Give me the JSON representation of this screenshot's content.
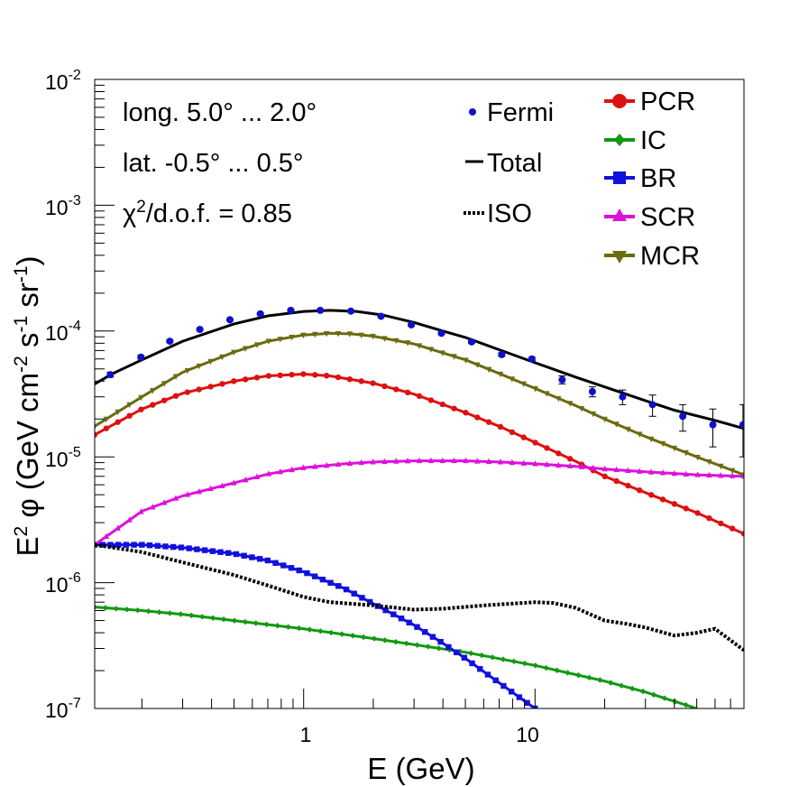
{
  "chart_data": {
    "type": "scatter",
    "xlabel": "E (GeV)",
    "ylabel": "E^2 φ (GeV cm^-2 s^-1 sr^-1)",
    "ylabel_parts": {
      "main": "E",
      "sup1": "2",
      "phi": " φ (GeV cm",
      "sup2": "-2",
      "s": " s",
      "sup3": "-1",
      "sr": " sr",
      "sup4": "-1",
      "close": ")"
    },
    "x_scale": "log",
    "y_scale": "log",
    "xlim": [
      0.125,
      80
    ],
    "ylim": [
      1e-07,
      0.01
    ],
    "x_tick_labels": [
      {
        "value": 1,
        "label": "1"
      },
      {
        "value": 10,
        "label": "10"
      }
    ],
    "y_tick_labels": [
      {
        "value": 1e-07,
        "base": "10",
        "exp": "-7"
      },
      {
        "value": 1e-06,
        "base": "10",
        "exp": "-6"
      },
      {
        "value": 1e-05,
        "base": "10",
        "exp": "-5"
      },
      {
        "value": 0.0001,
        "base": "10",
        "exp": "-4"
      },
      {
        "value": 0.001,
        "base": "10",
        "exp": "-3"
      },
      {
        "value": 0.01,
        "base": "10",
        "exp": "-2"
      }
    ],
    "annotations": {
      "longitude": "long. 5.0° ... 2.0°",
      "latitude": "lat. -0.5° ... 0.5°",
      "chi_prefix": "χ",
      "chi_sup": "2",
      "chi_rest": "/d.o.f. = 0.85"
    },
    "legend_left": [
      {
        "name": "Fermi",
        "kind": "points"
      },
      {
        "name": "Total",
        "kind": "line"
      },
      {
        "name": "ISO",
        "kind": "dotted"
      }
    ],
    "legend_right": [
      {
        "name": "PCR",
        "color": "#dd1111",
        "marker": "circle"
      },
      {
        "name": "IC",
        "color": "#119911",
        "marker": "diamond"
      },
      {
        "name": "BR",
        "color": "#1111dd",
        "marker": "square"
      },
      {
        "name": "SCR",
        "color": "#dd11dd",
        "marker": "triangle-up"
      },
      {
        "name": "MCR",
        "color": "#6b6b10",
        "marker": "triangle-down"
      }
    ],
    "series": [
      {
        "name": "Fermi",
        "color": "#1010cc",
        "x": [
          0.146,
          0.198,
          0.264,
          0.356,
          0.48,
          0.65,
          0.88,
          1.18,
          1.6,
          2.16,
          2.92,
          3.94,
          5.32,
          7.18,
          9.7,
          13.1,
          17.7,
          23.9,
          32.2,
          43.5,
          58.7,
          79.2
        ],
        "y": [
          4.5e-05,
          6.2e-05,
          8.3e-05,
          0.000103,
          0.000123,
          0.000137,
          0.000146,
          0.000146,
          0.000144,
          0.000131,
          0.000112,
          9.6e-05,
          8.2e-05,
          6.5e-05,
          6e-05,
          4.1e-05,
          3.3e-05,
          3e-05,
          2.6e-05,
          2.1e-05,
          1.8e-05,
          1.8e-05
        ],
        "yerr_lo": [
          2e-06,
          2e-06,
          2e-06,
          2e-06,
          2e-06,
          2e-06,
          2e-06,
          2e-06,
          2e-06,
          2e-06,
          2e-06,
          2e-06,
          2e-06,
          2e-06,
          2e-06,
          3e-06,
          3e-06,
          4e-06,
          5e-06,
          5e-06,
          6e-06,
          8e-06
        ],
        "yerr_hi": [
          2e-06,
          2e-06,
          2e-06,
          2e-06,
          2e-06,
          2e-06,
          2e-06,
          2e-06,
          2e-06,
          2e-06,
          2e-06,
          2e-06,
          2e-06,
          2e-06,
          2e-06,
          3e-06,
          3e-06,
          4e-06,
          5e-06,
          5e-06,
          6e-06,
          8e-06
        ]
      },
      {
        "name": "Total",
        "color": "#000000",
        "x": [
          0.125,
          0.15,
          0.2,
          0.3,
          0.5,
          0.7,
          1.0,
          1.3,
          1.7,
          2.2,
          3.0,
          4.0,
          5.0,
          7.0,
          10,
          15,
          20,
          30,
          40,
          60,
          80
        ],
        "y": [
          3.8e-05,
          4.6e-05,
          5.9e-05,
          8.3e-05,
          0.000114,
          0.000132,
          0.000143,
          0.000146,
          0.000143,
          0.000134,
          0.000117,
          0.0001,
          8.9e-05,
          7.1e-05,
          5.6e-05,
          4.3e-05,
          3.6e-05,
          2.8e-05,
          2.35e-05,
          1.95e-05,
          1.68e-05
        ]
      },
      {
        "name": "ISO",
        "color": "#000000",
        "x": [
          0.125,
          0.2,
          0.3,
          0.5,
          0.7,
          1.0,
          1.3,
          2.0,
          3.0,
          4.0,
          6.0,
          10,
          12,
          15,
          20,
          25,
          30,
          40,
          50,
          60,
          80
        ],
        "y": [
          2e-06,
          1.75e-06,
          1.45e-06,
          1.15e-06,
          9.5e-07,
          7.7e-07,
          7e-07,
          6.6e-07,
          6.1e-07,
          6.2e-07,
          6.6e-07,
          7e-07,
          6.9e-07,
          6.3e-07,
          5e-07,
          4.7e-07,
          4.4e-07,
          3.8e-07,
          4e-07,
          4.3e-07,
          2.9e-07
        ]
      },
      {
        "name": "PCR",
        "color": "#dd1111",
        "x": [
          0.125,
          0.2,
          0.3,
          0.5,
          0.7,
          1.0,
          1.3,
          2.0,
          3.0,
          5.0,
          7.0,
          10,
          15,
          20,
          30,
          50,
          80
        ],
        "y": [
          1.5e-05,
          2.4e-05,
          3.2e-05,
          4e-05,
          4.4e-05,
          4.55e-05,
          4.4e-05,
          3.85e-05,
          3.15e-05,
          2.25e-05,
          1.75e-05,
          1.3e-05,
          9.2e-06,
          7e-06,
          5.2e-06,
          3.6e-06,
          2.45e-06
        ]
      },
      {
        "name": "IC",
        "color": "#119911",
        "x": [
          0.125,
          0.2,
          0.3,
          0.5,
          1.0,
          2.0,
          5.0,
          10,
          20,
          30,
          50
        ],
        "y": [
          6.4e-07,
          6e-07,
          5.6e-07,
          5e-07,
          4.3e-07,
          3.6e-07,
          2.8e-07,
          2.2e-07,
          1.65e-07,
          1.35e-07,
          1e-07
        ]
      },
      {
        "name": "BR",
        "color": "#1111dd",
        "x": [
          0.125,
          0.2,
          0.3,
          0.5,
          0.7,
          1.0,
          1.5,
          2.0,
          3.0,
          4.0,
          5.0,
          7.0,
          10
        ],
        "y": [
          2e-06,
          2e-06,
          1.9e-06,
          1.7e-06,
          1.5e-06,
          1.22e-06,
          9e-07,
          6.8e-07,
          4.6e-07,
          3.3e-07,
          2.5e-07,
          1.6e-07,
          1e-07
        ]
      },
      {
        "name": "SCR",
        "color": "#dd11dd",
        "x": [
          0.125,
          0.2,
          0.3,
          0.5,
          0.7,
          1.0,
          1.5,
          2.0,
          3.0,
          5.0,
          7.0,
          10,
          15,
          20,
          30,
          50,
          80
        ],
        "y": [
          2e-06,
          3.7e-06,
          4.9e-06,
          6.2e-06,
          7.3e-06,
          8.2e-06,
          8.8e-06,
          9.1e-06,
          9.3e-06,
          9.3e-06,
          9.1e-06,
          8.8e-06,
          8.4e-06,
          8e-06,
          7.6e-06,
          7.2e-06,
          7e-06
        ]
      },
      {
        "name": "MCR",
        "color": "#6b6b10",
        "x": [
          0.125,
          0.2,
          0.3,
          0.5,
          0.7,
          1.0,
          1.3,
          1.6,
          2.0,
          3.0,
          5.0,
          7.0,
          10,
          15,
          20,
          30,
          50,
          80
        ],
        "y": [
          1.75e-05,
          3e-05,
          4.7e-05,
          6.8e-05,
          8.3e-05,
          9.3e-05,
          9.6e-05,
          9.5e-05,
          9.1e-05,
          7.9e-05,
          5.9e-05,
          4.6e-05,
          3.5e-05,
          2.55e-05,
          2e-05,
          1.45e-05,
          1e-05,
          7.2e-06
        ]
      }
    ]
  }
}
